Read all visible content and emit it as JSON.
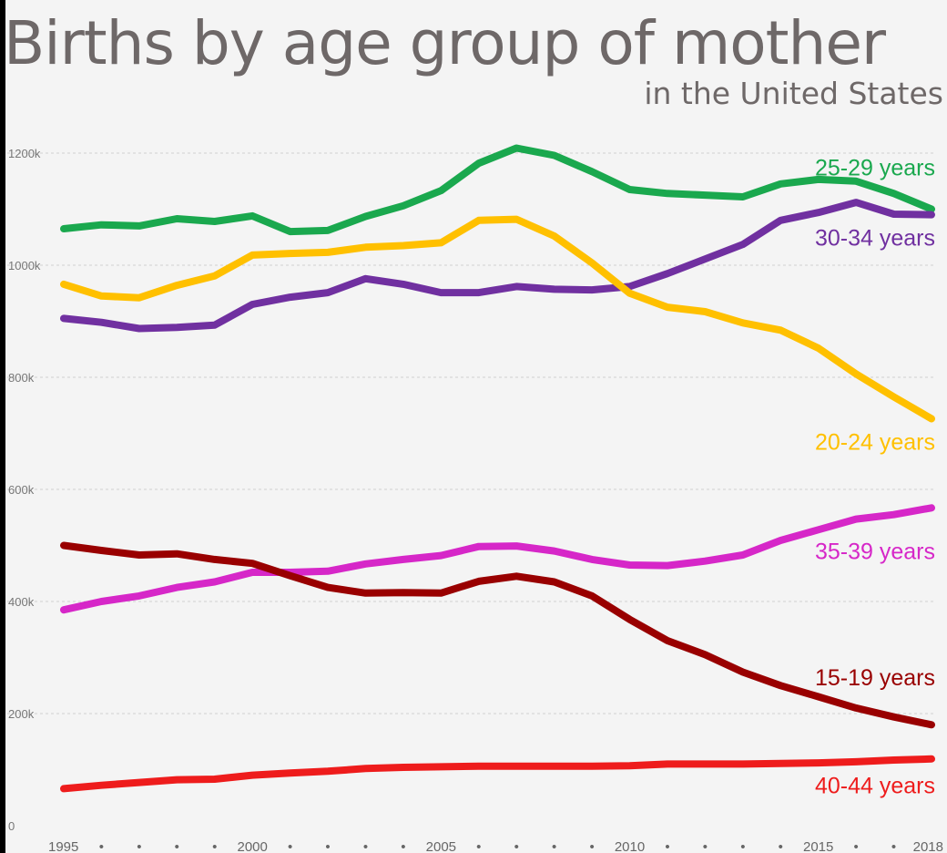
{
  "title": "Births by age group of mother",
  "subtitle": "in the United States",
  "chart_data": {
    "type": "line",
    "title": "Births by age group of mother",
    "subtitle": "in the United States",
    "x": [
      1995,
      1996,
      1997,
      1998,
      1999,
      2000,
      2001,
      2002,
      2003,
      2004,
      2005,
      2006,
      2007,
      2008,
      2009,
      2010,
      2011,
      2012,
      2013,
      2014,
      2015,
      2016,
      2017,
      2018
    ],
    "ylim": [
      0,
      1200000
    ],
    "y_ticks": [
      {
        "value": 0,
        "label": "0"
      },
      {
        "value": 200000,
        "label": "200k"
      },
      {
        "value": 400000,
        "label": "400k"
      },
      {
        "value": 600000,
        "label": "600k"
      },
      {
        "value": 800000,
        "label": "800k"
      },
      {
        "value": 1000000,
        "label": "1000k"
      },
      {
        "value": 1200000,
        "label": "1200k"
      }
    ],
    "x_ticks": [
      {
        "value": 1995,
        "label": "1995"
      },
      {
        "value": 1996,
        "label": "•"
      },
      {
        "value": 1997,
        "label": "•"
      },
      {
        "value": 1998,
        "label": "•"
      },
      {
        "value": 1999,
        "label": "•"
      },
      {
        "value": 2000,
        "label": "2000"
      },
      {
        "value": 2001,
        "label": "•"
      },
      {
        "value": 2002,
        "label": "•"
      },
      {
        "value": 2003,
        "label": "•"
      },
      {
        "value": 2004,
        "label": "•"
      },
      {
        "value": 2005,
        "label": "2005"
      },
      {
        "value": 2006,
        "label": "•"
      },
      {
        "value": 2007,
        "label": "•"
      },
      {
        "value": 2008,
        "label": "•"
      },
      {
        "value": 2009,
        "label": "•"
      },
      {
        "value": 2010,
        "label": "2010"
      },
      {
        "value": 2011,
        "label": "•"
      },
      {
        "value": 2012,
        "label": "•"
      },
      {
        "value": 2013,
        "label": "•"
      },
      {
        "value": 2014,
        "label": "•"
      },
      {
        "value": 2015,
        "label": "2015"
      },
      {
        "value": 2016,
        "label": "•"
      },
      {
        "value": 2017,
        "label": "•"
      },
      {
        "value": 2018,
        "label": "2018"
      }
    ],
    "grid": true,
    "legend": "inline labels at right end of each line",
    "series": [
      {
        "name": "25-29 years",
        "color": "#1aa84e",
        "values": [
          1065000,
          1072000,
          1070000,
          1083000,
          1078000,
          1088000,
          1060000,
          1062000,
          1087000,
          1106000,
          1133000,
          1182000,
          1209000,
          1196000,
          1167000,
          1135000,
          1128000,
          1125000,
          1122000,
          1145000,
          1153000,
          1150000,
          1128000,
          1100000
        ],
        "label_value": 1175000
      },
      {
        "name": "30-34 years",
        "color": "#7030a0",
        "values": [
          905000,
          898000,
          887000,
          889000,
          893000,
          930000,
          943000,
          951000,
          976000,
          966000,
          951000,
          951000,
          962000,
          957000,
          956000,
          962000,
          985000,
          1011000,
          1037000,
          1080000,
          1094000,
          1112000,
          1091000,
          1090000
        ],
        "label_value": 1050000
      },
      {
        "name": "20-24 years",
        "color": "#ffc000",
        "values": [
          966000,
          945000,
          942000,
          964000,
          981000,
          1018000,
          1021000,
          1023000,
          1032000,
          1035000,
          1040000,
          1080000,
          1082000,
          1052000,
          1004000,
          950000,
          925000,
          917000,
          897000,
          884000,
          852000,
          806000,
          765000,
          726000
        ],
        "label_value": 685000
      },
      {
        "name": "35-39 years",
        "color": "#d627c8",
        "values": [
          385000,
          400000,
          410000,
          425000,
          435000,
          452000,
          452000,
          454000,
          467000,
          475000,
          482000,
          498000,
          499000,
          490000,
          475000,
          465000,
          464000,
          472000,
          483000,
          509000,
          528000,
          547000,
          555000,
          567000
        ],
        "label_value": 490000
      },
      {
        "name": "15-19 years",
        "color": "#990000",
        "values": [
          500000,
          491000,
          483000,
          485000,
          475000,
          468000,
          446000,
          425000,
          415000,
          416000,
          415000,
          436000,
          445000,
          435000,
          410000,
          368000,
          330000,
          305000,
          274000,
          250000,
          230000,
          210000,
          194000,
          180000
        ],
        "label_value": 265000
      },
      {
        "name": "40-44 years",
        "color": "#ee1c1c",
        "values": [
          66000,
          72000,
          77000,
          82000,
          83000,
          90000,
          94000,
          97000,
          102000,
          104000,
          105000,
          106000,
          106000,
          106000,
          106000,
          107000,
          110000,
          110000,
          110000,
          111000,
          112000,
          114000,
          117000,
          119000
        ],
        "label_value": 72000
      }
    ]
  }
}
